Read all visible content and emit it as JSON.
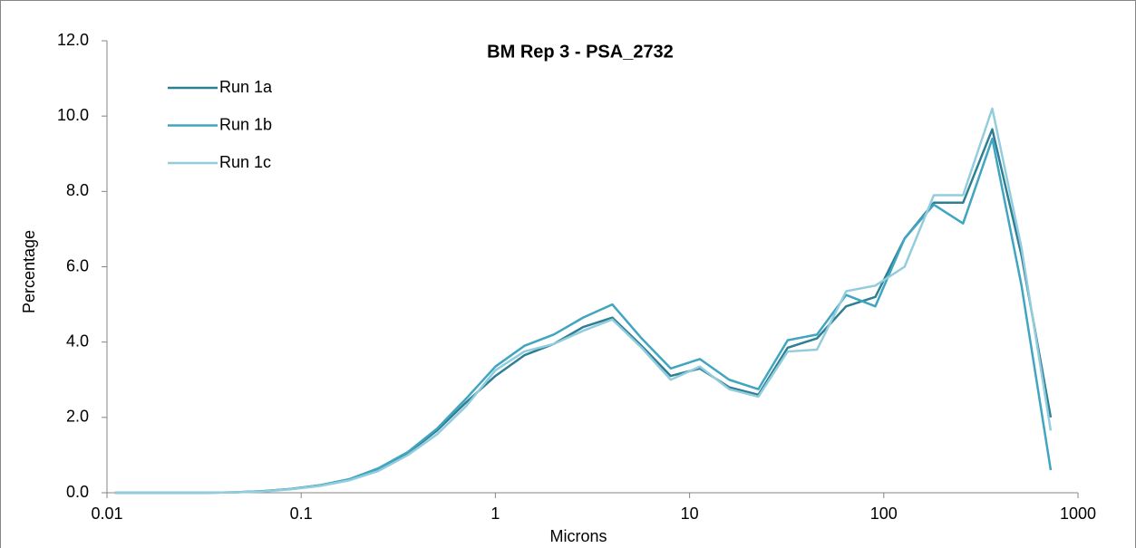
{
  "chart_data": {
    "type": "line",
    "title": "BM Rep 3 - PSA_2732",
    "x_label": "Microns",
    "y_label": "Percentage",
    "x": [
      0.011,
      0.0156,
      0.0221,
      0.0313,
      0.0442,
      0.0625,
      0.0884,
      0.125,
      0.177,
      0.25,
      0.354,
      0.5,
      0.707,
      1,
      1.41,
      2,
      2.83,
      4,
      5.66,
      8,
      11.3,
      16,
      22.6,
      32,
      45.3,
      64,
      90.5,
      128,
      181,
      256,
      362,
      512,
      724
    ],
    "series": [
      {
        "name": "Run 1a",
        "color": "#2e7f94",
        "values": [
          0,
          0,
          0,
          0,
          0.01,
          0.04,
          0.1,
          0.2,
          0.35,
          0.62,
          1.05,
          1.65,
          2.4,
          3.1,
          3.65,
          3.95,
          4.4,
          4.65,
          3.9,
          3.1,
          3.3,
          2.8,
          2.6,
          3.85,
          4.1,
          4.95,
          5.2,
          6.75,
          7.7,
          7.7,
          9.65,
          6.3,
          2.0
        ]
      },
      {
        "name": "Run 1b",
        "color": "#3fa5c0",
        "values": [
          0,
          0,
          0,
          0,
          0.01,
          0.04,
          0.1,
          0.2,
          0.36,
          0.65,
          1.08,
          1.7,
          2.5,
          3.35,
          3.9,
          4.2,
          4.65,
          5.0,
          4.1,
          3.3,
          3.55,
          3.0,
          2.75,
          4.05,
          4.2,
          5.25,
          4.95,
          6.75,
          7.65,
          7.15,
          9.4,
          5.5,
          0.6
        ]
      },
      {
        "name": "Run 1c",
        "color": "#93cddd",
        "values": [
          0,
          0,
          0,
          0,
          0.01,
          0.03,
          0.09,
          0.18,
          0.33,
          0.58,
          1.0,
          1.55,
          2.3,
          3.25,
          3.75,
          3.95,
          4.3,
          4.6,
          3.85,
          3.0,
          3.35,
          2.75,
          2.55,
          3.75,
          3.8,
          5.35,
          5.5,
          6.0,
          7.9,
          7.9,
          10.2,
          6.5,
          1.65
        ]
      }
    ],
    "x_log": true,
    "xlim": [
      0.01,
      1000
    ],
    "xticks": [
      0.01,
      0.1,
      1,
      10,
      100,
      1000
    ],
    "ylim": [
      0,
      12
    ],
    "yticks": [
      {
        "value": 0,
        "label": "0.0"
      },
      {
        "value": 2,
        "label": "2.0"
      },
      {
        "value": 4,
        "label": "4.0"
      },
      {
        "value": 6,
        "label": "6.0"
      },
      {
        "value": 8,
        "label": "8.0"
      },
      {
        "value": 10,
        "label": "10.0"
      },
      {
        "value": 12,
        "label": "12.0"
      }
    ],
    "grid": false,
    "legend": "upper left"
  }
}
